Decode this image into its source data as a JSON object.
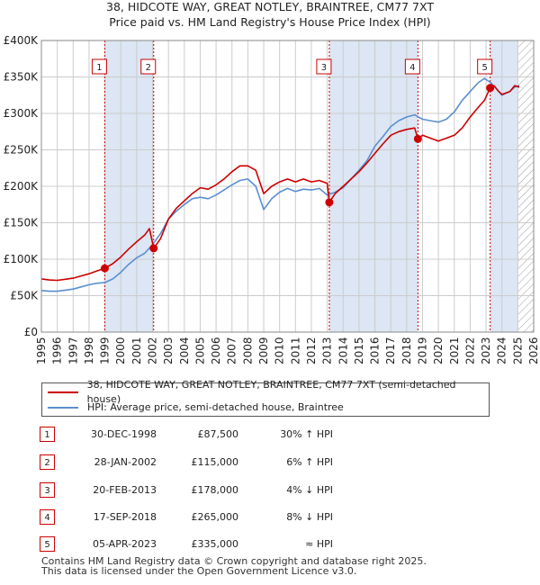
{
  "title_line1": "38, HIDCOTE WAY, GREAT NOTLEY, BRAINTREE, CM77 7XT",
  "title_line2": "Price paid vs. HM Land Registry's House Price Index (HPI)",
  "colors": {
    "property": "#cc0000",
    "hpi": "#5b8fd0",
    "shade": "#dce6f4",
    "grid": "#cccccc",
    "hatch": "#9a9a9a"
  },
  "chart_data": {
    "type": "line",
    "xlim": [
      1995,
      2026
    ],
    "ylim": [
      0,
      400000
    ],
    "x_ticks": [
      1995,
      1996,
      1997,
      1998,
      1999,
      2000,
      2001,
      2002,
      2003,
      2004,
      2005,
      2006,
      2007,
      2008,
      2009,
      2010,
      2011,
      2012,
      2013,
      2014,
      2015,
      2016,
      2017,
      2018,
      2019,
      2020,
      2021,
      2022,
      2023,
      2024,
      2025,
      2026
    ],
    "y_ticks": [
      0,
      50000,
      100000,
      150000,
      200000,
      250000,
      300000,
      350000,
      400000
    ],
    "y_tick_labels": [
      "£0",
      "£50K",
      "£100K",
      "£150K",
      "£200K",
      "£250K",
      "£300K",
      "£350K",
      "£400K"
    ],
    "hatched_from": 2025.0,
    "shaded_ranges": [
      [
        1998.99,
        2002.07
      ],
      [
        2013.13,
        2018.71
      ],
      [
        2023.26,
        2025.0
      ]
    ],
    "series": [
      {
        "name": "38, HIDCOTE WAY, GREAT NOTLEY, BRAINTREE, CM77 7XT (semi-detached house)",
        "color": "#cc0000",
        "points": [
          [
            1995.0,
            73000
          ],
          [
            1995.5,
            71500
          ],
          [
            1996.0,
            71000
          ],
          [
            1996.5,
            72500
          ],
          [
            1997.0,
            74000
          ],
          [
            1997.5,
            77000
          ],
          [
            1998.0,
            80000
          ],
          [
            1998.5,
            84000
          ],
          [
            1998.99,
            87500
          ],
          [
            1999.5,
            94000
          ],
          [
            2000.0,
            103000
          ],
          [
            2000.5,
            114000
          ],
          [
            2001.0,
            124000
          ],
          [
            2001.5,
            133000
          ],
          [
            2001.8,
            142000
          ],
          [
            2002.07,
            115000
          ],
          [
            2002.5,
            128000
          ],
          [
            2003.0,
            155000
          ],
          [
            2003.5,
            170000
          ],
          [
            2004.0,
            180000
          ],
          [
            2004.5,
            190000
          ],
          [
            2005.0,
            198000
          ],
          [
            2005.5,
            196000
          ],
          [
            2006.0,
            202000
          ],
          [
            2006.5,
            210000
          ],
          [
            2007.0,
            220000
          ],
          [
            2007.5,
            228000
          ],
          [
            2008.0,
            228000
          ],
          [
            2008.5,
            222000
          ],
          [
            2009.0,
            190000
          ],
          [
            2009.5,
            200000
          ],
          [
            2010.0,
            206000
          ],
          [
            2010.5,
            210000
          ],
          [
            2011.0,
            206000
          ],
          [
            2011.5,
            210000
          ],
          [
            2012.0,
            206000
          ],
          [
            2012.5,
            208000
          ],
          [
            2013.0,
            204000
          ],
          [
            2013.13,
            178000
          ],
          [
            2013.5,
            190000
          ],
          [
            2014.0,
            200000
          ],
          [
            2014.5,
            210000
          ],
          [
            2015.0,
            220000
          ],
          [
            2015.5,
            232000
          ],
          [
            2016.0,
            245000
          ],
          [
            2016.5,
            258000
          ],
          [
            2017.0,
            270000
          ],
          [
            2017.5,
            275000
          ],
          [
            2018.0,
            278000
          ],
          [
            2018.5,
            280000
          ],
          [
            2018.71,
            265000
          ],
          [
            2019.0,
            270000
          ],
          [
            2019.5,
            266000
          ],
          [
            2020.0,
            262000
          ],
          [
            2020.5,
            266000
          ],
          [
            2021.0,
            270000
          ],
          [
            2021.5,
            280000
          ],
          [
            2022.0,
            295000
          ],
          [
            2022.5,
            308000
          ],
          [
            2022.9,
            318000
          ],
          [
            2023.26,
            335000
          ],
          [
            2023.5,
            338000
          ],
          [
            2023.8,
            330000
          ],
          [
            2024.0,
            326000
          ],
          [
            2024.5,
            330000
          ],
          [
            2024.8,
            338000
          ],
          [
            2025.1,
            336000
          ]
        ]
      },
      {
        "name": "HPI: Average price, semi-detached house, Braintree",
        "color": "#5b8fd0",
        "points": [
          [
            1995.0,
            57000
          ],
          [
            1995.5,
            56000
          ],
          [
            1996.0,
            56000
          ],
          [
            1996.5,
            57500
          ],
          [
            1997.0,
            59000
          ],
          [
            1997.5,
            62000
          ],
          [
            1998.0,
            65000
          ],
          [
            1998.5,
            67000
          ],
          [
            1999.0,
            68000
          ],
          [
            1999.5,
            73000
          ],
          [
            2000.0,
            82000
          ],
          [
            2000.5,
            93000
          ],
          [
            2001.0,
            102000
          ],
          [
            2001.5,
            108000
          ],
          [
            2002.0,
            120000
          ],
          [
            2002.5,
            135000
          ],
          [
            2003.0,
            155000
          ],
          [
            2003.5,
            166000
          ],
          [
            2004.0,
            175000
          ],
          [
            2004.5,
            183000
          ],
          [
            2005.0,
            185000
          ],
          [
            2005.5,
            183000
          ],
          [
            2006.0,
            188000
          ],
          [
            2006.5,
            195000
          ],
          [
            2007.0,
            202000
          ],
          [
            2007.5,
            208000
          ],
          [
            2008.0,
            210000
          ],
          [
            2008.5,
            200000
          ],
          [
            2009.0,
            168000
          ],
          [
            2009.5,
            183000
          ],
          [
            2010.0,
            192000
          ],
          [
            2010.5,
            197000
          ],
          [
            2011.0,
            193000
          ],
          [
            2011.5,
            196000
          ],
          [
            2012.0,
            195000
          ],
          [
            2012.5,
            197000
          ],
          [
            2013.0,
            188000
          ],
          [
            2013.5,
            192000
          ],
          [
            2014.0,
            198000
          ],
          [
            2014.5,
            210000
          ],
          [
            2015.0,
            222000
          ],
          [
            2015.5,
            235000
          ],
          [
            2016.0,
            255000
          ],
          [
            2016.5,
            268000
          ],
          [
            2017.0,
            282000
          ],
          [
            2017.5,
            290000
          ],
          [
            2018.0,
            295000
          ],
          [
            2018.5,
            298000
          ],
          [
            2019.0,
            292000
          ],
          [
            2019.5,
            290000
          ],
          [
            2020.0,
            288000
          ],
          [
            2020.5,
            292000
          ],
          [
            2021.0,
            302000
          ],
          [
            2021.5,
            318000
          ],
          [
            2022.0,
            330000
          ],
          [
            2022.5,
            342000
          ],
          [
            2022.9,
            348000
          ],
          [
            2023.3,
            342000
          ],
          [
            2023.6,
            335000
          ],
          [
            2024.0,
            325000
          ],
          [
            2024.5,
            330000
          ],
          [
            2024.8,
            336000
          ],
          [
            2025.1,
            338000
          ]
        ]
      }
    ],
    "sales": [
      {
        "n": "1",
        "x": 1998.99,
        "y": 87500
      },
      {
        "n": "2",
        "x": 2002.07,
        "y": 115000
      },
      {
        "n": "3",
        "x": 2013.13,
        "y": 178000
      },
      {
        "n": "4",
        "x": 2018.71,
        "y": 265000
      },
      {
        "n": "5",
        "x": 2023.26,
        "y": 335000
      }
    ]
  },
  "legend": {
    "property_label": "38, HIDCOTE WAY, GREAT NOTLEY, BRAINTREE, CM77 7XT (semi-detached house)",
    "hpi_label": "HPI: Average price, semi-detached house, Braintree"
  },
  "sales_table": [
    {
      "n": "1",
      "date": "30-DEC-1998",
      "price": "£87,500",
      "hpi": "30% ↑ HPI"
    },
    {
      "n": "2",
      "date": "28-JAN-2002",
      "price": "£115,000",
      "hpi": "6% ↑ HPI"
    },
    {
      "n": "3",
      "date": "20-FEB-2013",
      "price": "£178,000",
      "hpi": "4% ↓ HPI"
    },
    {
      "n": "4",
      "date": "17-SEP-2018",
      "price": "£265,000",
      "hpi": "8% ↓ HPI"
    },
    {
      "n": "5",
      "date": "05-APR-2023",
      "price": "£335,000",
      "hpi": "≈ HPI"
    }
  ],
  "footer_line1": "Contains HM Land Registry data © Crown copyright and database right 2025.",
  "footer_line2": "This data is licensed under the Open Government Licence v3.0."
}
